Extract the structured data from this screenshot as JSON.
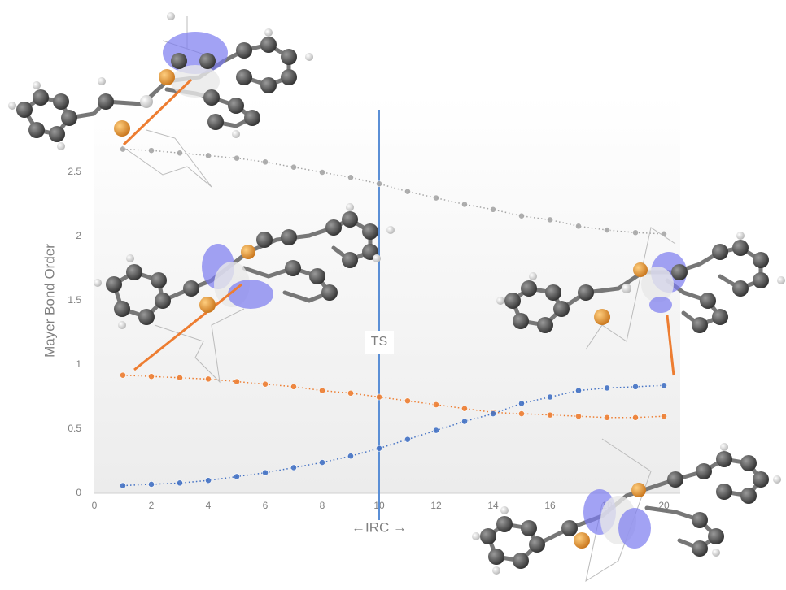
{
  "chart_data": {
    "type": "line",
    "x_label": "←IRC →",
    "y_label": "Mayer Bond Order",
    "xlim": [
      0,
      20
    ],
    "xticks": [
      0,
      2,
      4,
      6,
      8,
      10,
      12,
      14,
      16,
      18,
      20
    ],
    "ylim": [
      0,
      3
    ],
    "yticks": [
      0,
      0.5,
      1,
      1.5,
      2,
      2.5
    ],
    "x": [
      1,
      2,
      3,
      4,
      5,
      6,
      7,
      8,
      9,
      10,
      11,
      12,
      13,
      14,
      15,
      16,
      17,
      18,
      19,
      20
    ],
    "series": [
      {
        "color": "#a6a6a6",
        "values": [
          2.68,
          2.67,
          2.65,
          2.63,
          2.61,
          2.58,
          2.54,
          2.5,
          2.46,
          2.41,
          2.35,
          2.3,
          2.25,
          2.21,
          2.16,
          2.13,
          2.08,
          2.05,
          2.03,
          2.02
        ]
      },
      {
        "color": "#ed7d31",
        "values": [
          0.92,
          0.91,
          0.9,
          0.89,
          0.87,
          0.85,
          0.83,
          0.8,
          0.78,
          0.75,
          0.72,
          0.69,
          0.66,
          0.63,
          0.62,
          0.61,
          0.6,
          0.59,
          0.59,
          0.6
        ]
      },
      {
        "color": "#4472c4",
        "values": [
          0.06,
          0.07,
          0.08,
          0.1,
          0.13,
          0.16,
          0.2,
          0.24,
          0.29,
          0.35,
          0.42,
          0.49,
          0.56,
          0.62,
          0.7,
          0.75,
          0.8,
          0.82,
          0.83,
          0.84
        ]
      }
    ],
    "annotations": [
      {
        "text": "TS",
        "x": 10,
        "color": "#5b8fd6"
      }
    ]
  }
}
